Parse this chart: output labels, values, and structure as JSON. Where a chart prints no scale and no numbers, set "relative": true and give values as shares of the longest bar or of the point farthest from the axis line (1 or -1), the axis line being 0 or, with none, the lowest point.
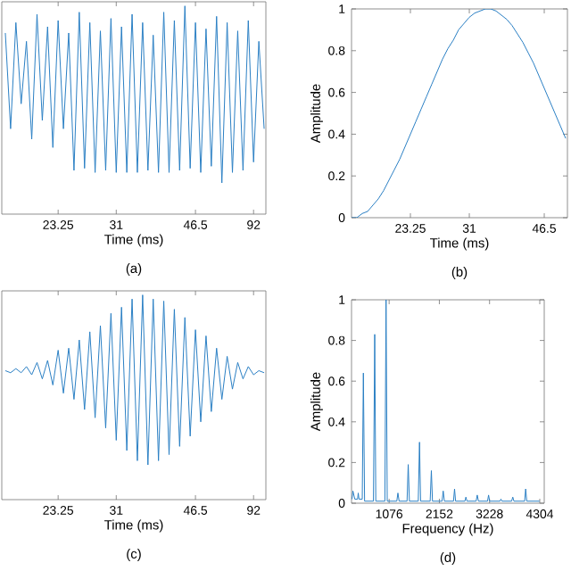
{
  "chart_data": [
    {
      "type": "line",
      "relative": true,
      "xlabel": "Time (ms)",
      "annotations": [
        "(a)"
      ],
      "color": "#2a7fc4",
      "categories": [
        null,
        null,
        null,
        null,
        null,
        null,
        null,
        null,
        null,
        null,
        "23.25",
        null,
        null,
        null,
        null,
        null,
        null,
        null,
        null,
        null,
        null,
        "31",
        null,
        null,
        null,
        null,
        null,
        null,
        null,
        null,
        null,
        null,
        null,
        null,
        null,
        null,
        "46.5",
        null,
        null,
        null,
        null,
        null,
        null,
        null,
        null,
        null,
        null,
        "92",
        null,
        null
      ],
      "values": [
        0.87,
        0.41,
        0.92,
        0.53,
        0.83,
        0.36,
        0.96,
        0.45,
        0.9,
        0.32,
        0.93,
        0.41,
        0.87,
        0.21,
        0.97,
        0.22,
        0.92,
        0.2,
        0.88,
        0.21,
        0.94,
        0.2,
        0.9,
        0.2,
        0.96,
        0.2,
        0.92,
        0.21,
        0.86,
        0.2,
        0.97,
        0.2,
        0.93,
        0.21,
        1.0,
        0.22,
        0.92,
        0.2,
        0.89,
        0.23,
        0.95,
        0.15,
        0.92,
        0.2,
        0.88,
        0.21,
        0.93,
        0.25,
        0.83,
        0.41
      ]
    },
    {
      "type": "line",
      "xlabel": "Time (ms)",
      "ylabel": "Amplitude",
      "annotations": [
        "(b)"
      ],
      "color": "#2a7fc4",
      "ylim": [
        0,
        1
      ],
      "yticks": [
        0,
        0.2,
        0.4,
        0.6,
        0.8,
        1
      ],
      "categories": [
        null,
        null,
        null,
        null,
        null,
        null,
        null,
        null,
        null,
        null,
        null,
        "23.25",
        null,
        null,
        null,
        null,
        null,
        null,
        null,
        null,
        null,
        null,
        "31",
        null,
        null,
        null,
        null,
        null,
        null,
        null,
        null,
        null,
        null,
        null,
        null,
        null,
        "46.5",
        null,
        null,
        null,
        null
      ],
      "values": [
        0,
        0,
        0.02,
        0.03,
        0.06,
        0.09,
        0.13,
        0.18,
        0.23,
        0.28,
        0.34,
        0.4,
        0.46,
        0.52,
        0.58,
        0.64,
        0.7,
        0.76,
        0.81,
        0.85,
        0.9,
        0.93,
        0.96,
        0.98,
        0.99,
        1.0,
        1.0,
        0.99,
        0.97,
        0.95,
        0.92,
        0.88,
        0.84,
        0.79,
        0.74,
        0.68,
        0.62,
        0.56,
        0.5,
        0.44,
        0.38
      ]
    },
    {
      "type": "line",
      "relative": true,
      "xlabel": "Time (ms)",
      "annotations": [
        "(c)"
      ],
      "color": "#2a7fc4",
      "categories": [
        null,
        null,
        null,
        null,
        null,
        null,
        null,
        null,
        null,
        null,
        "23.25",
        null,
        null,
        null,
        null,
        null,
        null,
        null,
        null,
        null,
        null,
        "31",
        null,
        null,
        null,
        null,
        null,
        null,
        null,
        null,
        null,
        null,
        null,
        null,
        null,
        null,
        "46.5",
        null,
        null,
        null,
        null,
        null,
        null,
        null,
        null,
        null,
        null,
        "92",
        null,
        null
      ],
      "values": [
        0.63,
        0.62,
        0.64,
        0.62,
        0.65,
        0.61,
        0.67,
        0.59,
        0.68,
        0.56,
        0.73,
        0.52,
        0.74,
        0.49,
        0.78,
        0.44,
        0.82,
        0.4,
        0.85,
        0.35,
        0.91,
        0.29,
        0.94,
        0.24,
        0.98,
        0.19,
        1.0,
        0.17,
        0.98,
        0.19,
        0.97,
        0.22,
        0.93,
        0.26,
        0.89,
        0.31,
        0.83,
        0.38,
        0.8,
        0.43,
        0.74,
        0.49,
        0.7,
        0.54,
        0.67,
        0.59,
        0.65,
        0.61,
        0.63,
        0.62
      ]
    },
    {
      "type": "line",
      "xlabel": "Frequency (Hz)",
      "ylabel": "Amplitude",
      "annotations": [
        "(d)"
      ],
      "color": "#2a7fc4",
      "xlim": [
        270,
        4400
      ],
      "ylim": [
        0,
        1
      ],
      "xticks": [
        1076,
        2152,
        3228,
        4304
      ],
      "yticks": [
        0,
        0.2,
        0.4,
        0.6,
        0.8,
        1
      ],
      "x": [
        280,
        300,
        340,
        400,
        414,
        430,
        500,
        524,
        550,
        740,
        767,
        790,
        985,
        1010,
        1035,
        1240,
        1264,
        1290,
        1460,
        1485,
        1510,
        1700,
        1727,
        1750,
        1955,
        1981,
        2005,
        2210,
        2235,
        2260,
        2455,
        2478,
        2500,
        2700,
        2721,
        2745,
        2940,
        2964,
        2990,
        3185,
        3207,
        3230,
        3450,
        3472,
        3495,
        3700,
        3726,
        3750,
        3980,
        4002,
        4025,
        4300
      ],
      "values": [
        0.02,
        0.06,
        0.02,
        0.02,
        0.05,
        0.02,
        0.02,
        0.64,
        0.01,
        0.01,
        0.83,
        0.01,
        0.01,
        1.0,
        0.01,
        0.01,
        0.05,
        0.01,
        0.01,
        0.19,
        0.01,
        0.01,
        0.3,
        0.01,
        0.01,
        0.16,
        0.01,
        0.01,
        0.06,
        0.01,
        0.01,
        0.07,
        0.01,
        0.01,
        0.03,
        0.01,
        0.01,
        0.04,
        0.01,
        0.01,
        0.04,
        0.01,
        0.01,
        0.02,
        0.01,
        0.01,
        0.03,
        0.01,
        0.01,
        0.07,
        0.01,
        0.01
      ]
    }
  ]
}
